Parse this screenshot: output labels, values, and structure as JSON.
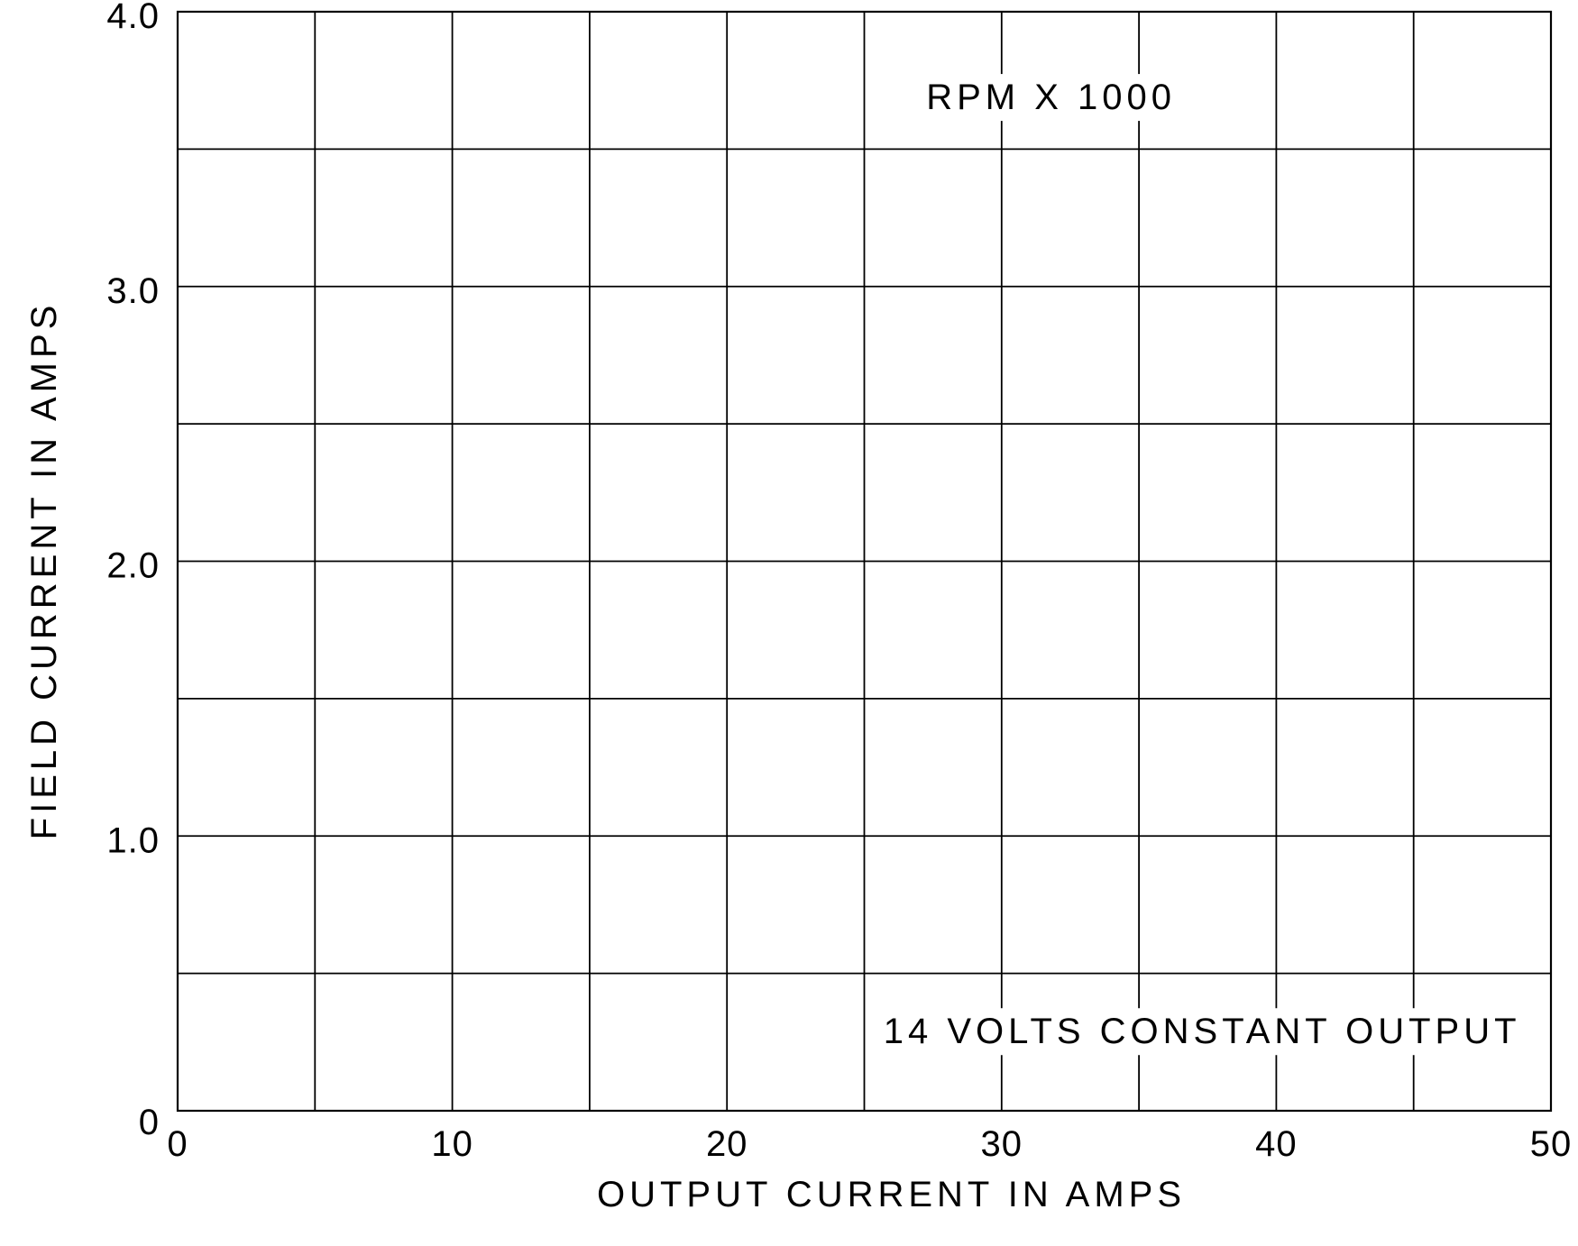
{
  "chart_data": {
    "type": "line",
    "title": "",
    "xlabel": "OUTPUT CURRENT IN AMPS",
    "ylabel": "FIELD CURRENT IN AMPS",
    "xlim": [
      0,
      50
    ],
    "ylim": [
      0,
      4.0
    ],
    "x_ticks": [
      "0",
      "10",
      "20",
      "30",
      "40",
      "50"
    ],
    "x_tick_values": [
      0,
      10,
      20,
      30,
      40,
      50
    ],
    "y_ticks": [
      "0",
      "1.0",
      "2.0",
      "3.0",
      "4.0"
    ],
    "y_tick_values": [
      0,
      1,
      2,
      3,
      4
    ],
    "x_grid_step": 5,
    "y_grid_step": 0.5,
    "grid": true,
    "series": [],
    "annotations": [
      {
        "text": "RPM  X  1000",
        "x": 31.8,
        "y": 3.68
      },
      {
        "text": "14  VOLTS  CONSTANT  OUTPUT",
        "x": 37.3,
        "y": 0.28
      }
    ],
    "colors": {
      "background": "#ffffff",
      "lines": "#000000"
    }
  }
}
